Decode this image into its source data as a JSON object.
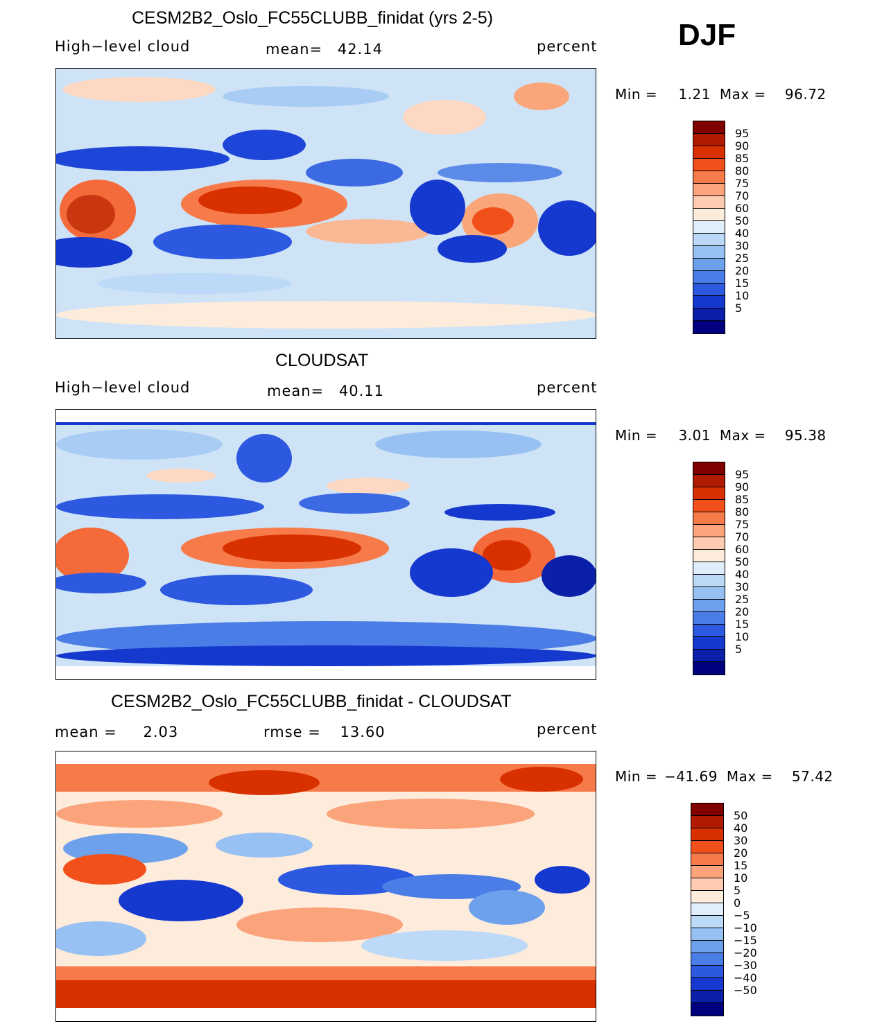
{
  "season": "DJF",
  "panels": [
    {
      "title": "CESM2B2_Oslo_FC55CLUBB_finidat (yrs 2-5)",
      "left_label": "High−level cloud",
      "center_label": "mean=",
      "center_value": "42.14",
      "unit": "percent",
      "min_label": "Min =",
      "min_value": "1.21",
      "max_label": "Max =",
      "max_value": "96.72",
      "colorbar": {
        "colors": [
          "#800000",
          "#b01a00",
          "#d93000",
          "#f2501a",
          "#f77b4a",
          "#fba47c",
          "#fdcbb0",
          "#fdebdc",
          "#e0eefb",
          "#bcd9f7",
          "#97c1f2",
          "#6ea1ec",
          "#4b7de6",
          "#2c59e0",
          "#1538cf",
          "#0a20a8",
          "#00007f"
        ],
        "labels": [
          "95",
          "90",
          "85",
          "80",
          "75",
          "70",
          "60",
          "50",
          "40",
          "30",
          "25",
          "20",
          "15",
          "10",
          "5"
        ]
      }
    },
    {
      "title": "CLOUDSAT",
      "left_label": "High−level cloud",
      "center_label": "mean=",
      "center_value": "40.11",
      "unit": "percent",
      "min_label": "Min =",
      "min_value": "3.01",
      "max_label": "Max =",
      "max_value": "95.38",
      "colorbar": {
        "colors": [
          "#800000",
          "#b01a00",
          "#d93000",
          "#f2501a",
          "#f77b4a",
          "#fba47c",
          "#fdcbb0",
          "#fdebdc",
          "#e0eefb",
          "#bcd9f7",
          "#97c1f2",
          "#6ea1ec",
          "#4b7de6",
          "#2c59e0",
          "#1538cf",
          "#0a20a8",
          "#00007f"
        ],
        "labels": [
          "95",
          "90",
          "85",
          "80",
          "75",
          "70",
          "60",
          "50",
          "40",
          "30",
          "25",
          "20",
          "15",
          "10",
          "5"
        ]
      }
    },
    {
      "title": "CESM2B2_Oslo_FC55CLUBB_finidat - CLOUDSAT",
      "left_label": "mean =",
      "left_value": "2.03",
      "center_label": "rmse =",
      "center_value": "13.60",
      "unit": "percent",
      "min_label": "Min =",
      "min_value": "−41.69",
      "max_label": "Max =",
      "max_value": "57.42",
      "colorbar": {
        "colors": [
          "#800000",
          "#b01a00",
          "#d93000",
          "#f2501a",
          "#f77b4a",
          "#fba47c",
          "#fdcbb0",
          "#fdebdc",
          "#e0eefb",
          "#bcd9f7",
          "#97c1f2",
          "#6ea1ec",
          "#4b7de6",
          "#2c59e0",
          "#1538cf",
          "#0a20a8",
          "#00007f"
        ],
        "labels": [
          "50",
          "40",
          "30",
          "20",
          "15",
          "10",
          "5",
          "0",
          "−5",
          "−10",
          "−15",
          "−20",
          "−30",
          "−40",
          "−50"
        ]
      }
    }
  ]
}
